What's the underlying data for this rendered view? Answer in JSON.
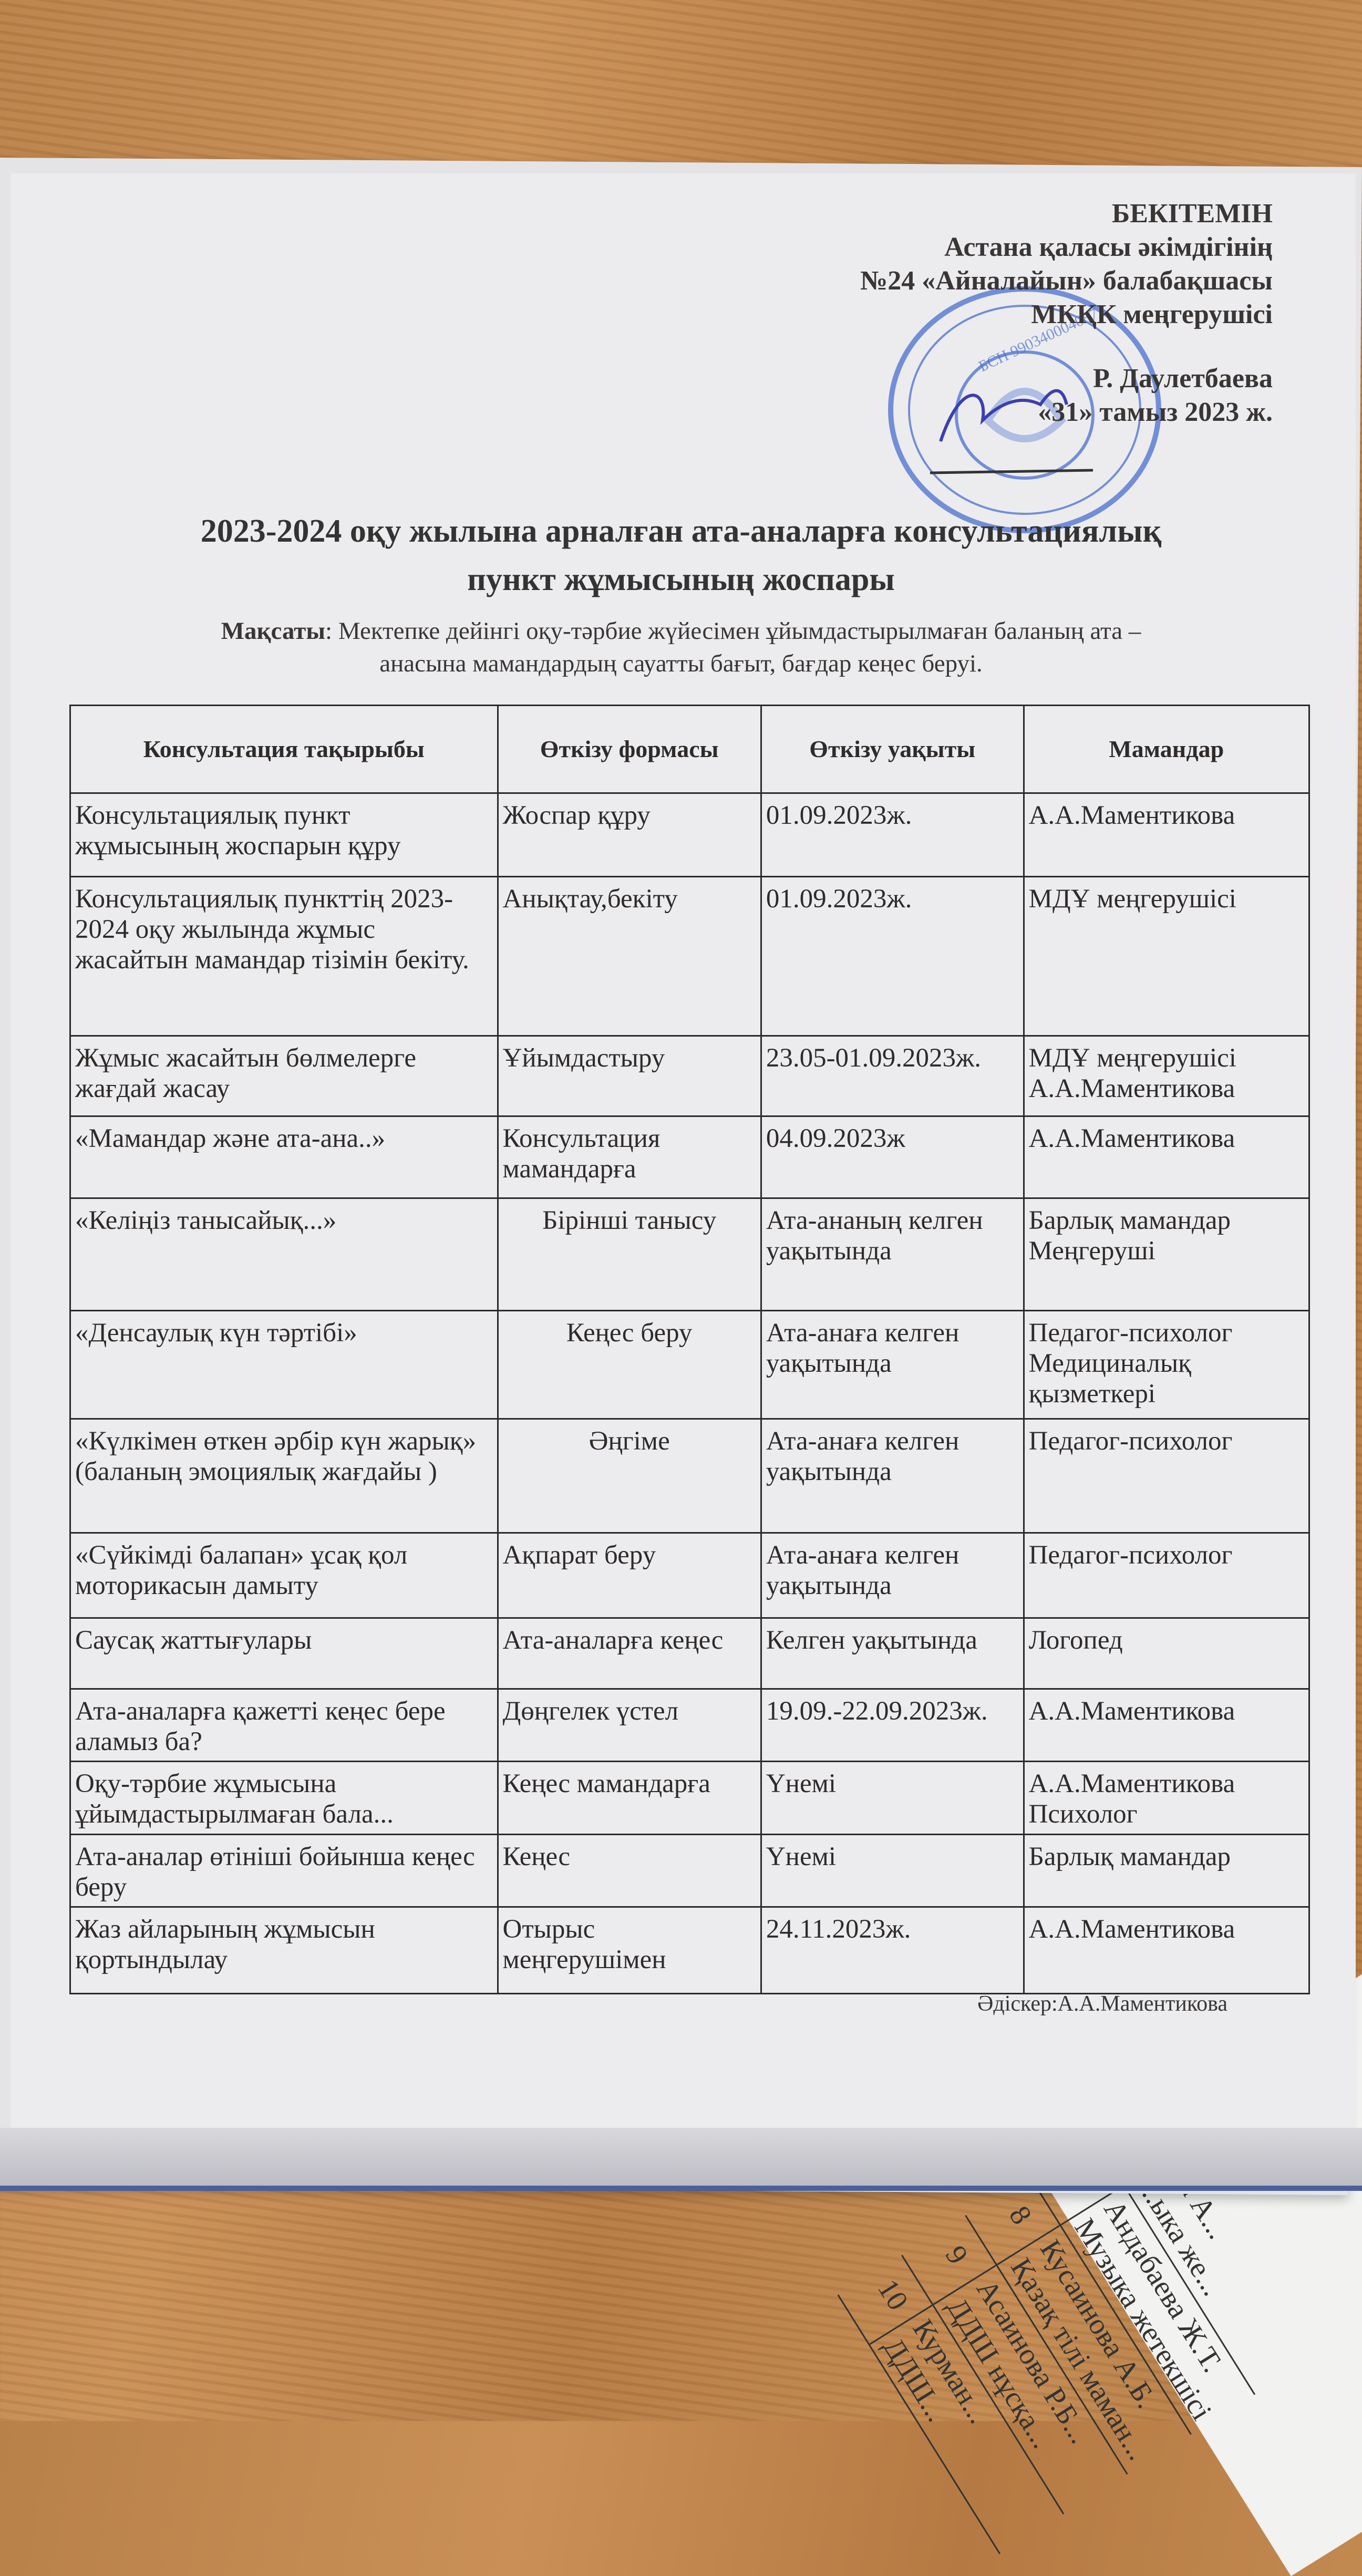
{
  "approval": {
    "heading": "БЕКІТЕМІН",
    "line1": "Астана қаласы әкімдігінің",
    "line2": "№24 «Айналайын» балабақшасы",
    "line3": "МКҚК меңгерушісі",
    "signatory": "Р. Даулетбаева",
    "date": "«31» тамыз 2023 ж.",
    "seal_text": "БСН 990340004087",
    "seal_color": "#4a6fd0"
  },
  "title": {
    "line1": "2023-2024 оқу жылына арналған ата-аналарға консультациялық",
    "line2": "пункт жұмысының жоспары"
  },
  "goal": {
    "label": "Мақсаты",
    "line1": ": Мектепке дейінгі оқу-тәрбие жүйесімен ұйымдастырылмаған баланың ата –",
    "line2": "анасына мамандардың сауатты бағыт, бағдар кеңес беруі."
  },
  "table": {
    "headers": [
      "Консультация тақырыбы",
      "Өткізу формасы",
      "Өткізу уақыты",
      "Мамандар"
    ],
    "rows": [
      [
        "Консультациялық пункт жұмысының жоспарын құру",
        "Жоспар құру",
        "01.09.2023ж.",
        "А.А.Маментикова"
      ],
      [
        "Консультациялық пункттің 2023-2024 оқу жылында жұмыс жасайтын мамандар тізімін бекіту.",
        "Анықтау,бекіту",
        "01.09.2023ж.",
        "МДҰ меңгерушісі"
      ],
      [
        "Жұмыс жасайтын бөлмелерге жағдай жасау",
        "Ұйымдастыру",
        "23.05-01.09.2023ж.",
        "МДҰ меңгерушісі А.А.Маментикова"
      ],
      [
        "«Мамандар және ата-ана..»",
        "Консультация мамандарға",
        "04.09.2023ж",
        "А.А.Маментикова"
      ],
      [
        "«Келіңіз танысайық...»",
        "Бірінші танысу",
        "Ата-ананың келген уақытында",
        "Барлық мамандар Меңгеруші"
      ],
      [
        "«Денсаулық күн тәртібі»",
        "Кеңес беру",
        "Ата-анаға келген уақытында",
        "Педагог-психолог Медициналық қызметкері"
      ],
      [
        "«Күлкімен өткен әрбір күн жарық» (баланың эмоциялық жағдайы )",
        "Әңгіме",
        "Ата-анаға келген уақытында",
        "Педагог-психолог"
      ],
      [
        "«Сүйкімді балапан»  ұсақ қол моторикасын дамыту",
        "Ақпарат беру",
        "Ата-анаға келген уақытында",
        "Педагог-психолог"
      ],
      [
        "Саусақ жаттығулары",
        "Ата-аналарға кеңес",
        "Келген уақытында",
        "Логопед"
      ],
      [
        "Ата-аналарға қажетті кеңес бере аламыз ба?",
        "Дөңгелек үстел",
        "19.09.-22.09.2023ж.",
        "А.А.Маментикова"
      ],
      [
        "Оқу-тәрбие жұмысына ұйымдастырылмаған бала...",
        "Кеңес мамандарға",
        "Үнемі",
        "А.А.Маментикова Психолог"
      ],
      [
        "Ата-аналар өтініші бойынша кеңес беру",
        "Кеңес",
        "Үнемі",
        "Барлық мамандар"
      ],
      [
        "Жаз айларының жұмысын қортындылау",
        "Отырыс меңгерушімен",
        "24.11.2023ж.",
        "А.А.Маментикова"
      ]
    ]
  },
  "author": "Әдіскер:А.А.Маментикова",
  "second_sheet": {
    "rows": [
      {
        "num": "",
        "line1": "...а А...",
        "line2": "...ыка же..."
      },
      {
        "num": "7",
        "line1": "Андабаева Ж.Т.",
        "line2": "Музыка жетекшісі"
      },
      {
        "num": "8",
        "line1": "Кусаинова А.Б.",
        "line2": "Қазақ тілі маман..."
      },
      {
        "num": "9",
        "line1": "Асаинова Р.Б...",
        "line2": "ДДШ нұсқа..."
      },
      {
        "num": "10",
        "line1": "Курман...",
        "line2": "ДДШ..."
      }
    ]
  }
}
